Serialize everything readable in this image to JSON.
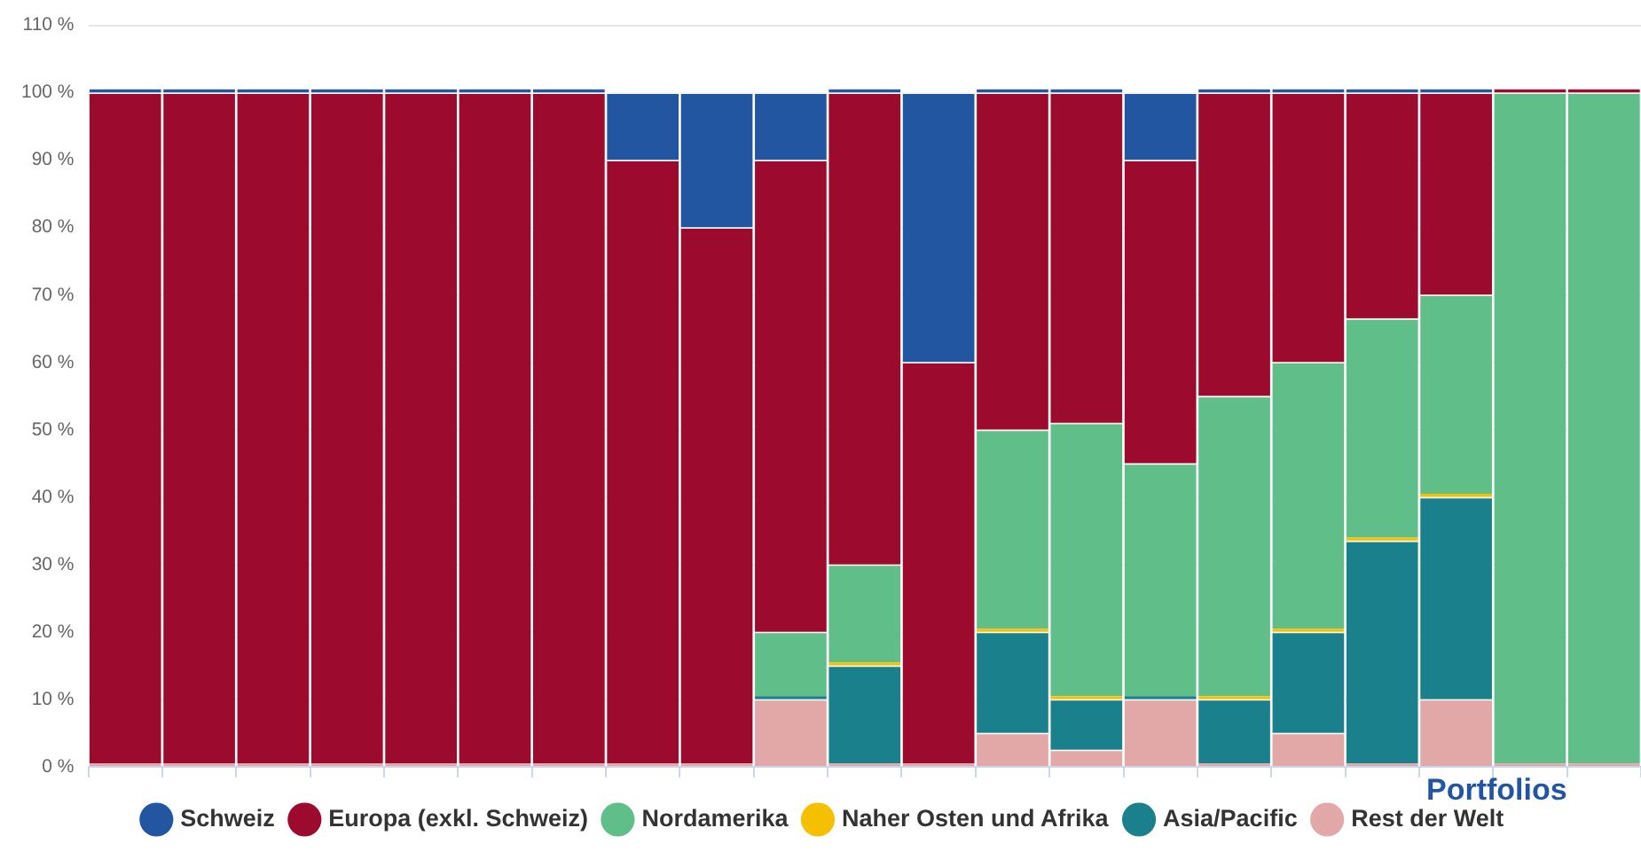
{
  "chart_data": {
    "type": "bar",
    "stacked": true,
    "xlabel": "Portfolios",
    "categories": [
      null,
      null,
      null,
      null,
      null,
      null,
      null,
      null,
      null,
      null,
      null,
      null,
      null,
      null,
      null,
      null,
      null,
      null,
      null,
      null,
      null
    ],
    "series": [
      {
        "name": "Rest der Welt",
        "color": "#e2a8a8",
        "values": [
          0.5,
          0.5,
          0.5,
          0.5,
          0.5,
          0.5,
          0.5,
          0.5,
          0.5,
          10,
          0.5,
          0.5,
          5,
          2.5,
          10,
          0.5,
          5,
          0.5,
          10,
          0.5,
          0.5
        ]
      },
      {
        "name": "Asia/Pacific",
        "color": "#1a818c",
        "values": [
          0,
          0,
          0,
          0,
          0,
          0,
          0,
          0,
          0,
          0.5,
          14.5,
          0,
          15,
          7.5,
          0.5,
          9.5,
          15,
          33,
          30,
          0,
          0
        ]
      },
      {
        "name": "Naher Osten und Afrika",
        "color": "#f5c000",
        "values": [
          0,
          0,
          0,
          0,
          0,
          0,
          0,
          0,
          0,
          0,
          0.5,
          0,
          0.5,
          0.5,
          0,
          0.5,
          0.5,
          0.5,
          0.5,
          0,
          0
        ]
      },
      {
        "name": "Nordamerika",
        "color": "#60bf89",
        "values": [
          0,
          0,
          0,
          0,
          0,
          0,
          0,
          0,
          0,
          9.5,
          14.5,
          0,
          29.5,
          40.5,
          34.5,
          44.5,
          39.5,
          32.5,
          29.5,
          99.5,
          99.5
        ]
      },
      {
        "name": "Europa (exkl. Schweiz)",
        "color": "#9c0a2e",
        "values": [
          99.5,
          99.5,
          99.5,
          99.5,
          99.5,
          99.5,
          99.5,
          89.5,
          79.5,
          70,
          70,
          59.5,
          50,
          49,
          45,
          45,
          40,
          33.5,
          30,
          0.5,
          0.5
        ]
      },
      {
        "name": "Schweiz",
        "color": "#2356a1",
        "values": [
          0.5,
          0.5,
          0.5,
          0.5,
          0.5,
          0.5,
          0.5,
          10,
          20,
          10,
          0.5,
          40,
          0.5,
          0.5,
          10,
          0.5,
          0.5,
          0.5,
          0.5,
          0,
          0
        ]
      }
    ],
    "ylim": [
      0,
      110
    ],
    "yticks": [
      {
        "value": 0,
        "label": "0 %"
      },
      {
        "value": 10,
        "label": "10 %"
      },
      {
        "value": 20,
        "label": "20 %"
      },
      {
        "value": 30,
        "label": "30 %"
      },
      {
        "value": 40,
        "label": "40 %"
      },
      {
        "value": 50,
        "label": "50 %"
      },
      {
        "value": 60,
        "label": "60 %"
      },
      {
        "value": 70,
        "label": "70 %"
      },
      {
        "value": 80,
        "label": "80 %"
      },
      {
        "value": 90,
        "label": "90 %"
      },
      {
        "value": 100,
        "label": "100 %"
      },
      {
        "value": 110,
        "label": "110 %"
      }
    ],
    "grid": "y",
    "legend": "bottom"
  }
}
